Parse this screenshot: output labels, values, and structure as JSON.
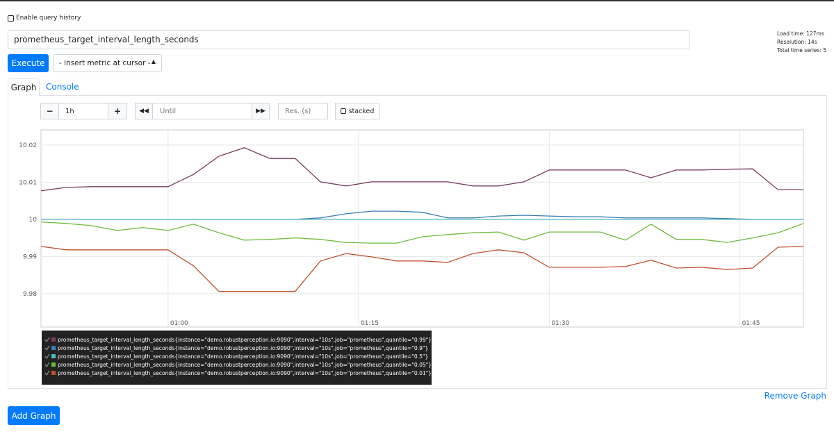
{
  "header": {
    "query_history_label": "Enable query history",
    "query": "prometheus_target_interval_length_seconds",
    "stats": [
      "Load time: 127ms",
      "Resolution: 14s",
      "Total time series: 5"
    ],
    "execute": "Execute",
    "insert_metric": "- insert metric at cursor -"
  },
  "tabs": [
    "Graph",
    "Console"
  ],
  "controls": {
    "range": "1h",
    "until": "Until",
    "resolution": "Res. (s)",
    "stacked": "stacked"
  },
  "graph": {
    "type": "line",
    "x": [
      50,
      52,
      54,
      56,
      58,
      60,
      62,
      64,
      66,
      68,
      70,
      72,
      74,
      76,
      78,
      80,
      82,
      84,
      86,
      88,
      90,
      92,
      94,
      96,
      98,
      100,
      102,
      104,
      106,
      108,
      110
    ],
    "xlim": [
      50,
      110
    ],
    "xticks": [
      {
        "value": 60,
        "label": "01:00"
      },
      {
        "value": 75,
        "label": "01:15"
      },
      {
        "value": 90,
        "label": "01:30"
      },
      {
        "value": 105,
        "label": "01:45"
      }
    ],
    "ylim": [
      9.971,
      10.0241
    ],
    "yticks": [
      10.02,
      10.01,
      10,
      9.99,
      9.98
    ],
    "grid": true,
    "series": [
      {
        "name": "prometheus_target_interval_length_seconds{instance=\"demo.robustperception.io:9090\",interval=\"10s\",job=\"prometheus\",quantile=\"0.99\"}",
        "color": "#7a3b62",
        "values": [
          10.0077,
          10.0086,
          10.0088,
          10.0088,
          10.0088,
          10.0088,
          10.0121,
          10.017,
          10.0193,
          10.0164,
          10.0164,
          10.0101,
          10.009,
          10.0101,
          10.0101,
          10.0101,
          10.0101,
          10.009,
          10.009,
          10.0101,
          10.0133,
          10.0133,
          10.0133,
          10.0133,
          10.0112,
          10.0133,
          10.0133,
          10.0135,
          10.0136,
          10.008,
          10.008
        ]
      },
      {
        "name": "prometheus_target_interval_length_seconds{instance=\"demo.robustperception.io:9090\",interval=\"10s\",job=\"prometheus\",quantile=\"0.9\"}",
        "color": "#3a7db5",
        "values": [
          10,
          10,
          10,
          10,
          10,
          10,
          10,
          10,
          10,
          10,
          10,
          10.0004,
          10.0015,
          10.0022,
          10.0022,
          10.0019,
          10.0004,
          10.0004,
          10.0009,
          10.0011,
          10.0009,
          10.0007,
          10.0007,
          10.0004,
          10.0004,
          10.0004,
          10.0004,
          10.0002,
          10,
          10,
          10
        ]
      },
      {
        "name": "prometheus_target_interval_length_seconds{instance=\"demo.robustperception.io:9090\",interval=\"10s\",job=\"prometheus\",quantile=\"0.5\"}",
        "color": "#4fb6bf",
        "values": [
          10,
          10,
          10,
          10,
          10,
          10,
          10,
          10,
          10,
          10,
          10,
          10,
          10,
          10,
          10,
          10,
          10,
          10,
          10,
          10,
          10,
          10,
          10,
          10,
          10,
          10,
          10,
          10,
          10,
          10,
          10
        ]
      },
      {
        "name": "prometheus_target_interval_length_seconds{instance=\"demo.robustperception.io:9090\",interval=\"10s\",job=\"prometheus\",quantile=\"0.05\"}",
        "color": "#6cbb3c",
        "values": [
          9.9993,
          9.9989,
          9.9983,
          9.997,
          9.9978,
          9.997,
          9.9987,
          9.9964,
          9.9944,
          9.9946,
          9.995,
          9.9946,
          9.9938,
          9.9936,
          9.9936,
          9.9953,
          9.9959,
          9.9964,
          9.9966,
          9.9944,
          9.9966,
          9.9966,
          9.9966,
          9.9944,
          9.9987,
          9.9946,
          9.9946,
          9.9938,
          9.995,
          9.9964,
          9.9989
        ]
      },
      {
        "name": "prometheus_target_interval_length_seconds{instance=\"demo.robustperception.io:9090\",interval=\"10s\",job=\"prometheus\",quantile=\"0.01\"}",
        "color": "#c0502d",
        "values": [
          9.9927,
          9.9918,
          9.9918,
          9.9918,
          9.9918,
          9.9918,
          9.9875,
          9.9806,
          9.9806,
          9.9806,
          9.9806,
          9.9888,
          9.9908,
          9.9899,
          9.9888,
          9.9888,
          9.9884,
          9.9908,
          9.9918,
          9.991,
          9.9871,
          9.9871,
          9.9871,
          9.9873,
          9.989,
          9.9869,
          9.9871,
          9.9865,
          9.9869,
          9.9925,
          9.9927
        ]
      }
    ]
  },
  "remove_graph": "Remove Graph",
  "add_graph": "Add Graph"
}
